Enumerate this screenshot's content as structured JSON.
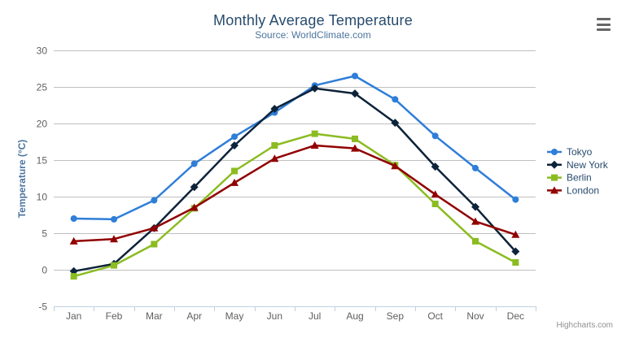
{
  "header": {
    "title": "Monthly Average Temperature",
    "subtitle": "Source: WorldClimate.com"
  },
  "toolbar": {
    "export_icon": "hamburger-icon"
  },
  "credits": {
    "label": "Highcharts.com"
  },
  "colors": {
    "title": "#274b6d",
    "subtitle": "#4d759e",
    "axis_title": "#4d759e",
    "axis_labels": "#606060",
    "gridline": "#c0c0c0",
    "axis_line": "#c0d0e0",
    "legend_text": "#274b6d",
    "credits_text": "#909090",
    "background": "#ffffff"
  },
  "chart_data": {
    "type": "line",
    "title": "Monthly Average Temperature",
    "subtitle": "Source: WorldClimate.com",
    "xlabel": "",
    "ylabel": "Temperature (°C)",
    "categories": [
      "Jan",
      "Feb",
      "Mar",
      "Apr",
      "May",
      "Jun",
      "Jul",
      "Aug",
      "Sep",
      "Oct",
      "Nov",
      "Dec"
    ],
    "ylim": [
      -5,
      30
    ],
    "ytick_step": 5,
    "grid": true,
    "legend_position": "right",
    "series": [
      {
        "name": "Tokyo",
        "color": "#2f7ed8",
        "marker": "circle",
        "values": [
          7.0,
          6.9,
          9.5,
          14.5,
          18.2,
          21.5,
          25.2,
          26.5,
          23.3,
          18.3,
          13.9,
          9.6
        ]
      },
      {
        "name": "New York",
        "color": "#0d233a",
        "marker": "diamond",
        "values": [
          -0.2,
          0.8,
          5.7,
          11.3,
          17.0,
          22.0,
          24.8,
          24.1,
          20.1,
          14.1,
          8.6,
          2.5
        ]
      },
      {
        "name": "Berlin",
        "color": "#8bbc21",
        "marker": "square",
        "values": [
          -0.9,
          0.6,
          3.5,
          8.4,
          13.5,
          17.0,
          18.6,
          17.9,
          14.3,
          9.0,
          3.9,
          1.0
        ]
      },
      {
        "name": "London",
        "color": "#910000",
        "marker": "triangle",
        "values": [
          3.9,
          4.2,
          5.7,
          8.5,
          11.9,
          15.2,
          17.0,
          16.6,
          14.2,
          10.3,
          6.6,
          4.8
        ]
      }
    ]
  }
}
